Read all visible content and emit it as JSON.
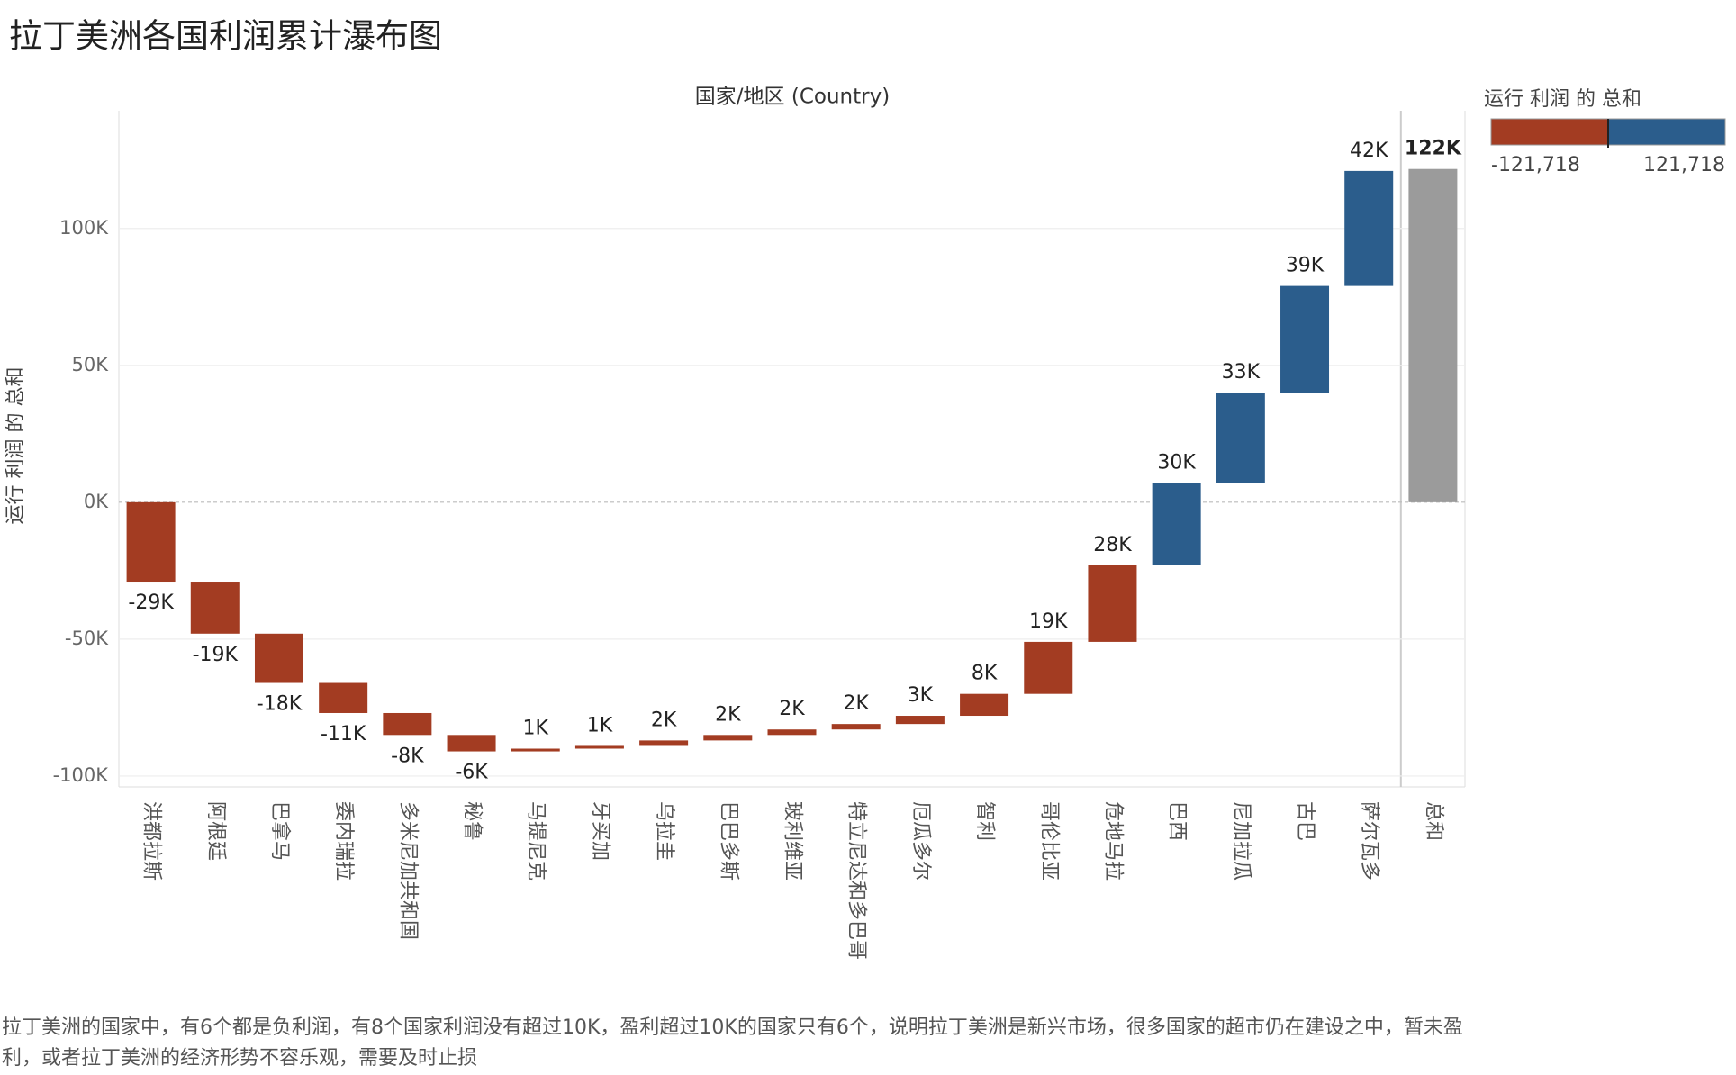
{
  "chart_data": {
    "type": "waterfall",
    "title": "拉丁美洲各国利润累计瀑布图",
    "x_label": "国家/地区 (Country)",
    "y_label": "运行 利润 的 总和",
    "categories": [
      "洪都拉斯",
      "阿根廷",
      "巴拿马",
      "委内瑞拉",
      "多米尼加共和国",
      "秘鲁",
      "马提尼克",
      "牙买加",
      "乌拉圭",
      "巴巴多斯",
      "玻利维亚",
      "特立尼达和多巴哥",
      "厄瓜多尔",
      "智利",
      "哥伦比亚",
      "危地马拉",
      "巴西",
      "尼加拉瓜",
      "古巴",
      "萨尔瓦多"
    ],
    "values": [
      -29000,
      -19000,
      -18000,
      -11000,
      -8000,
      -6000,
      1000,
      1000,
      2000,
      2000,
      2000,
      2000,
      3000,
      8000,
      19000,
      28000,
      30000,
      33000,
      39000,
      42000
    ],
    "value_labels": [
      "-29K",
      "-19K",
      "-18K",
      "-11K",
      "-8K",
      "-6K",
      "1K",
      "1K",
      "2K",
      "2K",
      "2K",
      "2K",
      "3K",
      "8K",
      "19K",
      "28K",
      "30K",
      "33K",
      "39K",
      "42K"
    ],
    "total": {
      "label": "总和",
      "value": 121718,
      "value_label": "122K",
      "color": "#9b9b9b"
    },
    "ylim": [
      -102000,
      143000
    ],
    "yticks": [
      {
        "value": -100000,
        "label": "-100K"
      },
      {
        "value": -50000,
        "label": "-50K"
      },
      {
        "value": 0,
        "label": "0K"
      },
      {
        "value": 50000,
        "label": "50K"
      },
      {
        "value": 100000,
        "label": "100K"
      }
    ],
    "grid": true,
    "legend": {
      "title": "运行 利润 的 总和",
      "min": {
        "value": -121718,
        "label": "-121,718"
      },
      "max": {
        "value": 121718,
        "label": "121,718"
      },
      "colors": [
        "#a33c22",
        "#2b5d8c"
      ]
    },
    "note": "拉丁美洲的国家中，有6个都是负利润，有8个国家利润没有超过10K，盈利超过10K的国家只有6个，说明拉丁美洲是新兴市场，很多国家的超市仍在建设之中，暂未盈利，或者拉丁美洲的经济形势不容乐观，需要及时止损"
  }
}
